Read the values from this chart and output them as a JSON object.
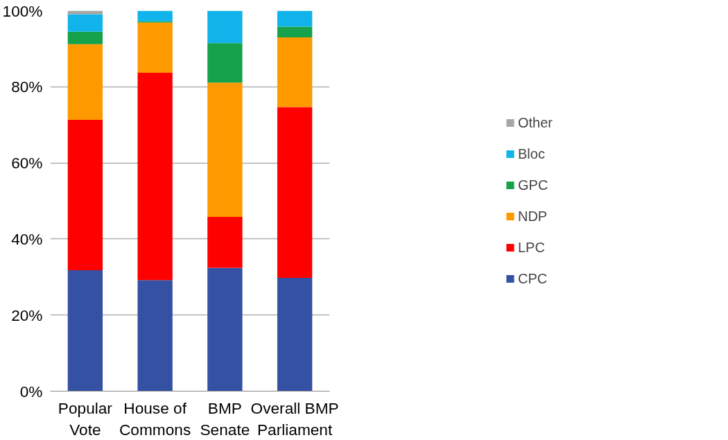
{
  "chart_data": {
    "type": "bar",
    "stacked": true,
    "categories": [
      "Popular\nVote",
      "House of\nCommons",
      "BMP\nSenate",
      "Overall BMP\nParliament"
    ],
    "series": [
      {
        "name": "CPC",
        "color": "#3451a3",
        "values": [
          31.8,
          29.2,
          32.4,
          29.8
        ]
      },
      {
        "name": "LPC",
        "color": "#ff0000",
        "values": [
          39.5,
          54.5,
          13.4,
          44.9
        ]
      },
      {
        "name": "NDP",
        "color": "#ff9900",
        "values": [
          19.9,
          13.2,
          35.3,
          18.3
        ]
      },
      {
        "name": "GPC",
        "color": "#16a24a",
        "values": [
          3.3,
          0.3,
          10.4,
          2.8
        ]
      },
      {
        "name": "Bloc",
        "color": "#10b4ea",
        "values": [
          4.6,
          2.8,
          8.5,
          4.2
        ]
      },
      {
        "name": "Other",
        "color": "#a6a6a6",
        "values": [
          0.9,
          0,
          0,
          0
        ]
      }
    ],
    "ylim": [
      0,
      100
    ],
    "yticks": [
      {
        "value": 0,
        "label": "0%"
      },
      {
        "value": 20,
        "label": "20%"
      },
      {
        "value": 40,
        "label": "40%"
      },
      {
        "value": 60,
        "label": "60%"
      },
      {
        "value": 80,
        "label": "80%"
      },
      {
        "value": 100,
        "label": "100%"
      }
    ],
    "grid": "y",
    "legend": "right"
  }
}
